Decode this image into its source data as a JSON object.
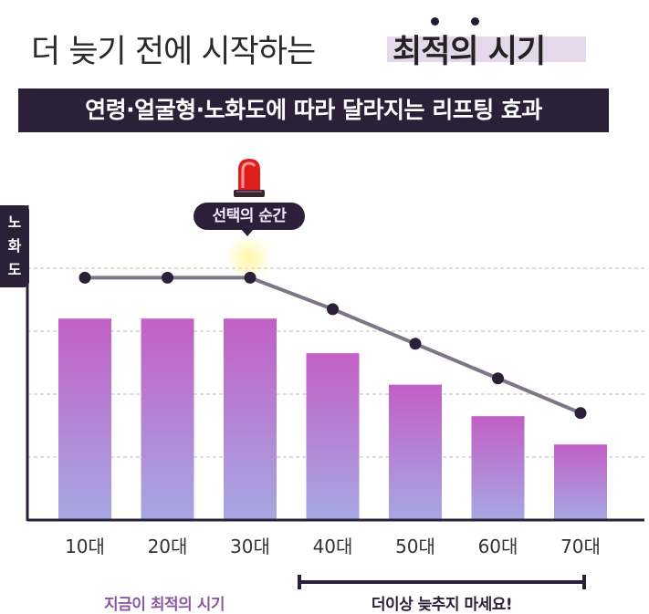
{
  "headline": {
    "normal": "더 늦기 전에 시작하는",
    "strong": "최적의 시기"
  },
  "subtitle": "연령·얼굴형·노화도에 따라 달라지는 리프팅 효과",
  "callout": "선택의 순간",
  "chart_data": {
    "type": "bar",
    "categories": [
      "10대",
      "20대",
      "30대",
      "40대",
      "50대",
      "60대",
      "70대"
    ],
    "ylabel": "노화도",
    "series": [
      {
        "values": [
          64,
          64,
          64,
          53,
          43,
          33,
          24
        ]
      },
      {
        "values": [
          77,
          77,
          77,
          67,
          56,
          45,
          34
        ]
      }
    ],
    "ylim": [
      0,
      100
    ],
    "grid": true
  },
  "ranges": [
    {
      "label": "지금이 최적의 시기",
      "color": "#8a5a9e"
    },
    {
      "label": "더이상 늦추지 마세요!",
      "color": "#2c1f38"
    }
  ],
  "colors": {
    "bar_top": "#c25fc6",
    "bar_bottom": "#a6a8e2",
    "line": "#7e7587",
    "marker": "#2c1f38",
    "dark": "#2c1f38",
    "highlight": "#e4d8ea"
  }
}
